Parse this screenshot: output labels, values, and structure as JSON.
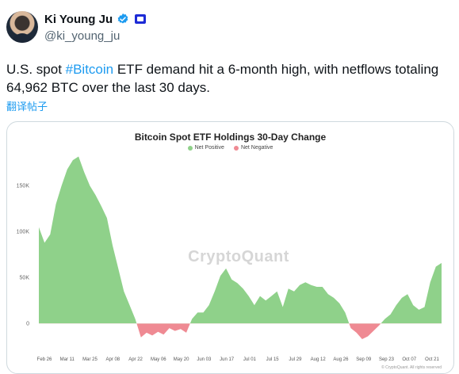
{
  "tweet": {
    "author_name": "Ki Young Ju",
    "handle": "@ki_young_ju",
    "text_before": "U.S. spot ",
    "hashtag": "#Bitcoin",
    "text_after": " ETF demand hit a 6-month high, with netflows totaling 64,962 BTC over the last 30 days.",
    "translate_label": "翻译帖子"
  },
  "colors": {
    "positive": "#8fd18a",
    "negative": "#ef8a93",
    "link": "#1d9bf0"
  },
  "chart_data": {
    "type": "area",
    "title": "Bitcoin Spot ETF Holdings 30-Day Change",
    "legend": [
      "Net Positive",
      "Net Negative"
    ],
    "watermark": "CryptoQuant",
    "copyright": "© CryptoQuant. All rights reserved",
    "y_ticks": [
      {
        "label": "150K",
        "value": 150000
      },
      {
        "label": "100K",
        "value": 100000
      },
      {
        "label": "50K",
        "value": 50000
      },
      {
        "label": "0",
        "value": 0
      }
    ],
    "x_ticks": [
      "Feb 26",
      "Mar 11",
      "Mar 25",
      "Apr 08",
      "Apr 22",
      "May 06",
      "May 20",
      "Jun 03",
      "Jun 17",
      "Jul 01",
      "Jul 15",
      "Jul 29",
      "Aug 12",
      "Aug 26",
      "Sep 09",
      "Sep 23",
      "Oct 07",
      "Oct 21"
    ],
    "ylim": [
      -17000,
      185000
    ],
    "x": [
      "Feb 22",
      "Feb 23",
      "Feb 26",
      "Mar 01",
      "Mar 04",
      "Mar 08",
      "Mar 11",
      "Mar 14",
      "Mar 18",
      "Mar 21",
      "Mar 25",
      "Mar 28",
      "Apr 01",
      "Apr 05",
      "Apr 08",
      "Apr 12",
      "Apr 15",
      "Apr 18",
      "Apr 22",
      "Apr 26",
      "Apr 29",
      "May 02",
      "May 06",
      "May 09",
      "May 13",
      "May 16",
      "May 20",
      "May 23",
      "May 27",
      "May 30",
      "Jun 03",
      "Jun 06",
      "Jun 10",
      "Jun 13",
      "Jun 17",
      "Jun 20",
      "Jun 24",
      "Jun 27",
      "Jul 01",
      "Jul 04",
      "Jul 08",
      "Jul 11",
      "Jul 15",
      "Jul 18",
      "Jul 22",
      "Jul 25",
      "Jul 29",
      "Aug 01",
      "Aug 05",
      "Aug 08",
      "Aug 12",
      "Aug 15",
      "Aug 19",
      "Aug 22",
      "Aug 26",
      "Aug 29",
      "Sep 02",
      "Sep 05",
      "Sep 09",
      "Sep 12",
      "Sep 16",
      "Sep 19",
      "Sep 23",
      "Sep 26",
      "Sep 30",
      "Oct 03",
      "Oct 07",
      "Oct 10",
      "Oct 14",
      "Oct 17",
      "Oct 21",
      "Oct 23"
    ],
    "values": [
      105000,
      88000,
      97000,
      130000,
      150000,
      168000,
      178000,
      182000,
      165000,
      150000,
      140000,
      128000,
      115000,
      85000,
      60000,
      35000,
      20000,
      5000,
      -15000,
      -10000,
      -13000,
      -9000,
      -12000,
      -5000,
      -8000,
      -6000,
      -10000,
      5000,
      12000,
      12000,
      20000,
      35000,
      52000,
      60000,
      48000,
      44000,
      38000,
      30000,
      20000,
      30000,
      25000,
      30000,
      35000,
      18000,
      38000,
      35000,
      42000,
      45000,
      42000,
      40000,
      40000,
      32000,
      28000,
      22000,
      12000,
      -5000,
      -10000,
      -17000,
      -14000,
      -8000,
      -2000,
      5000,
      10000,
      20000,
      28000,
      32000,
      20000,
      15000,
      18000,
      45000,
      62000,
      66000
    ]
  }
}
